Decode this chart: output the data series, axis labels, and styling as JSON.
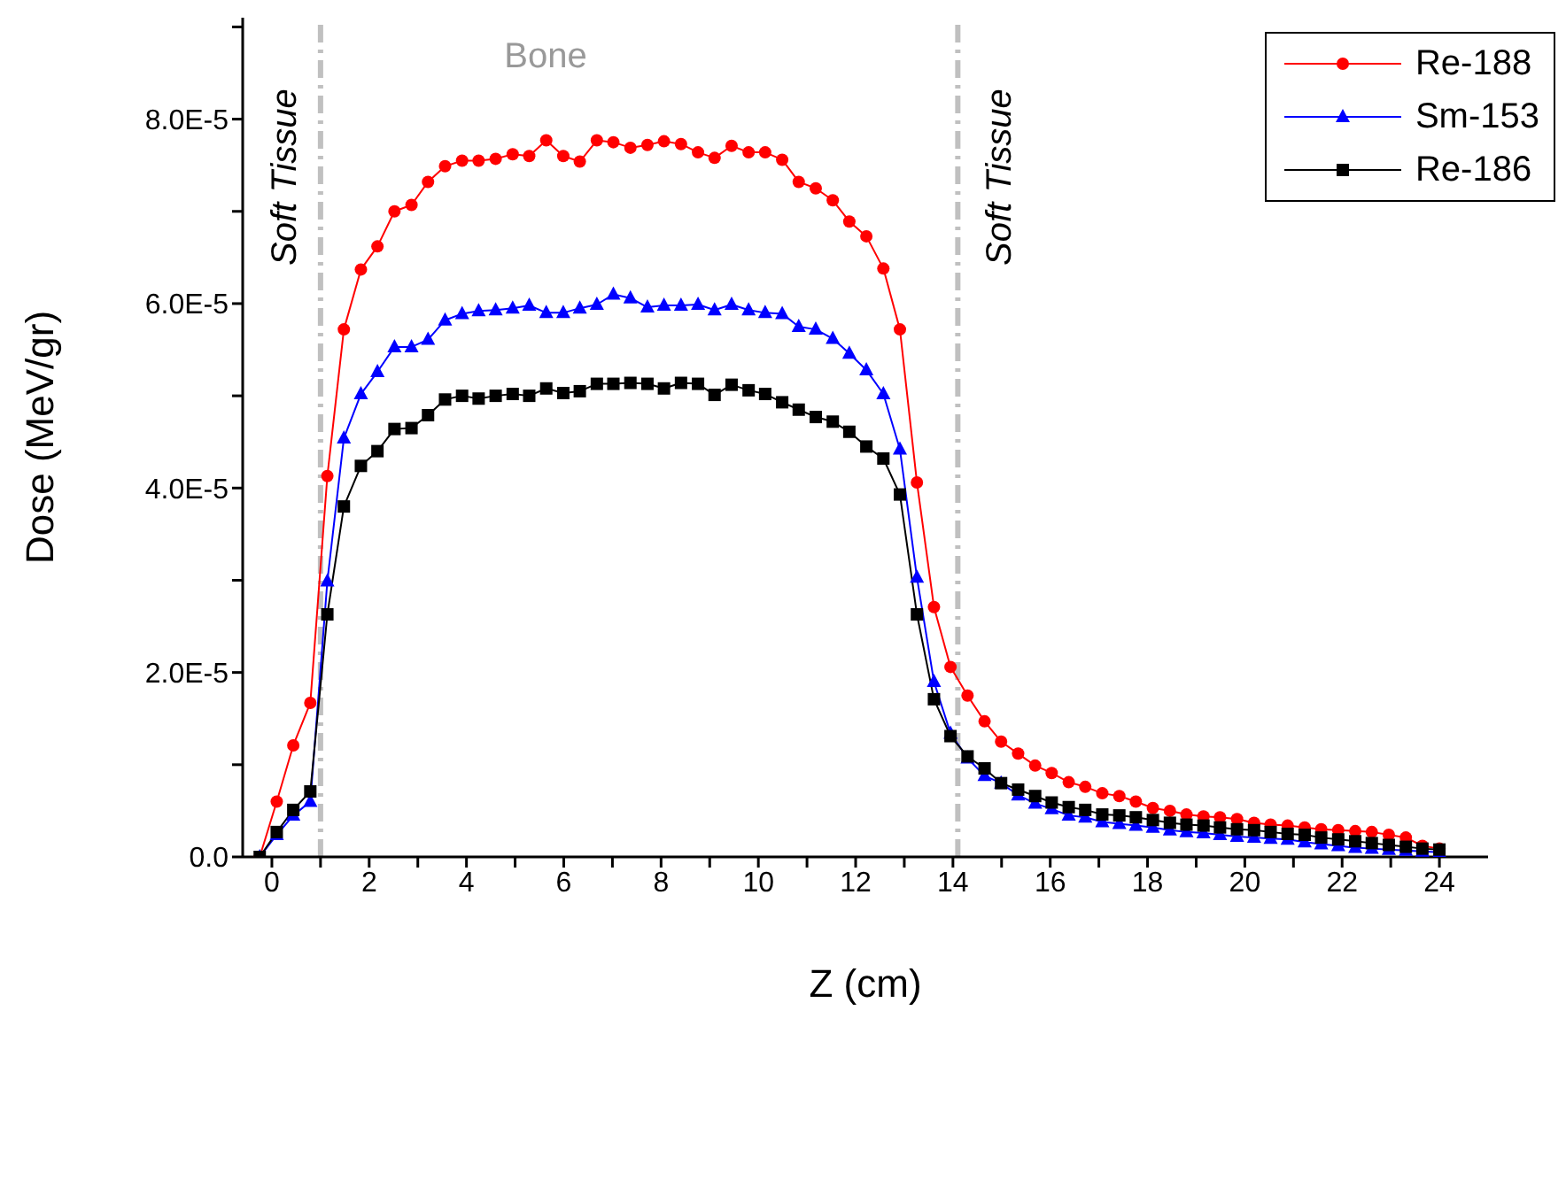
{
  "chart_data": {
    "type": "line",
    "xlabel": "Z (cm)",
    "ylabel": "Dose (MeV/gr)",
    "x": [
      -0.25,
      0.1,
      0.44,
      0.79,
      1.14,
      1.48,
      1.83,
      2.17,
      2.52,
      2.87,
      3.21,
      3.56,
      3.91,
      4.25,
      4.6,
      4.95,
      5.29,
      5.64,
      5.99,
      6.33,
      6.68,
      7.02,
      7.37,
      7.72,
      8.06,
      8.41,
      8.76,
      9.1,
      9.45,
      9.8,
      10.14,
      10.49,
      10.83,
      11.18,
      11.53,
      11.87,
      12.22,
      12.57,
      12.91,
      13.26,
      13.61,
      13.95,
      14.3,
      14.65,
      14.99,
      15.34,
      15.69,
      16.03,
      16.38,
      16.72,
      17.07,
      17.42,
      17.76,
      18.11,
      18.46,
      18.8,
      19.15,
      19.49,
      19.84,
      20.19,
      20.53,
      20.88,
      21.23,
      21.57,
      21.92,
      22.27,
      22.61,
      22.96,
      23.31,
      23.65,
      24.0
    ],
    "series": [
      {
        "name": "Re-188",
        "color": "#ff0000",
        "marker": "circle",
        "values": [
          0,
          6e-06,
          1.21e-05,
          1.67e-05,
          4.13e-05,
          5.72e-05,
          6.37e-05,
          6.62e-05,
          7e-05,
          7.07e-05,
          7.32e-05,
          7.49e-05,
          7.55e-05,
          7.55e-05,
          7.57e-05,
          7.62e-05,
          7.6e-05,
          7.77e-05,
          7.6e-05,
          7.54e-05,
          7.77e-05,
          7.75e-05,
          7.69e-05,
          7.72e-05,
          7.76e-05,
          7.73e-05,
          7.64e-05,
          7.58e-05,
          7.71e-05,
          7.64e-05,
          7.64e-05,
          7.56e-05,
          7.32e-05,
          7.25e-05,
          7.12e-05,
          6.89e-05,
          6.73e-05,
          6.38e-05,
          5.72e-05,
          4.06e-05,
          2.71e-05,
          2.06e-05,
          1.75e-05,
          1.47e-05,
          1.25e-05,
          1.12e-05,
          9.9e-06,
          9.1e-06,
          8.1e-06,
          7.6e-06,
          6.9e-06,
          6.6e-06,
          6e-06,
          5.3e-06,
          5e-06,
          4.6e-06,
          4.4e-06,
          4.3e-06,
          4.1e-06,
          3.7e-06,
          3.5e-06,
          3.4e-06,
          3.2e-06,
          3e-06,
          2.9e-06,
          2.8e-06,
          2.7e-06,
          2.4e-06,
          2.1e-06,
          1.2e-06,
          9e-07
        ]
      },
      {
        "name": "Sm-153",
        "color": "#0000ff",
        "marker": "triangle",
        "values": [
          0,
          2.4e-06,
          4.5e-06,
          6e-06,
          2.99e-05,
          4.54e-05,
          5.02e-05,
          5.26e-05,
          5.53e-05,
          5.53e-05,
          5.61e-05,
          5.82e-05,
          5.89e-05,
          5.92e-05,
          5.93e-05,
          5.95e-05,
          5.98e-05,
          5.9e-05,
          5.9e-05,
          5.95e-05,
          5.99e-05,
          6.1e-05,
          6.06e-05,
          5.96e-05,
          5.98e-05,
          5.98e-05,
          5.99e-05,
          5.93e-05,
          5.99e-05,
          5.93e-05,
          5.9e-05,
          5.89e-05,
          5.75e-05,
          5.72e-05,
          5.62e-05,
          5.46e-05,
          5.28e-05,
          5.02e-05,
          4.42e-05,
          3.03e-05,
          1.9e-05,
          1.34e-05,
          1.07e-05,
          8.8e-06,
          8e-06,
          6.7e-06,
          5.8e-06,
          5.2e-06,
          4.5e-06,
          4.3e-06,
          3.8e-06,
          3.6e-06,
          3.4e-06,
          3.2e-06,
          2.9e-06,
          2.7e-06,
          2.6e-06,
          2.4e-06,
          2.2e-06,
          2.1e-06,
          2e-06,
          1.9e-06,
          1.6e-06,
          1.4e-06,
          1.2e-06,
          1e-06,
          9e-07,
          8e-07,
          7e-07,
          6e-07,
          5e-07
        ]
      },
      {
        "name": "Re-186",
        "color": "#000000",
        "marker": "square",
        "values": [
          0,
          2.7e-06,
          5.1e-06,
          7.1e-06,
          2.63e-05,
          3.8e-05,
          4.24e-05,
          4.4e-05,
          4.64e-05,
          4.65e-05,
          4.79e-05,
          4.96e-05,
          5e-05,
          4.97e-05,
          5e-05,
          5.02e-05,
          5e-05,
          5.08e-05,
          5.03e-05,
          5.05e-05,
          5.13e-05,
          5.13e-05,
          5.14e-05,
          5.13e-05,
          5.08e-05,
          5.14e-05,
          5.13e-05,
          5.01e-05,
          5.12e-05,
          5.06e-05,
          5.02e-05,
          4.93e-05,
          4.85e-05,
          4.77e-05,
          4.72e-05,
          4.61e-05,
          4.45e-05,
          4.32e-05,
          3.93e-05,
          2.63e-05,
          1.71e-05,
          1.31e-05,
          1.09e-05,
          9.6e-06,
          8e-06,
          7.3e-06,
          6.6e-06,
          5.9e-06,
          5.4e-06,
          5.1e-06,
          4.6e-06,
          4.5e-06,
          4.3e-06,
          4e-06,
          3.7e-06,
          3.5e-06,
          3.4e-06,
          3.2e-06,
          3e-06,
          2.9e-06,
          2.7e-06,
          2.5e-06,
          2.4e-06,
          2.1e-06,
          1.9e-06,
          1.7e-06,
          1.5e-06,
          1.3e-06,
          1.1e-06,
          9e-07,
          8e-07
        ]
      }
    ],
    "xlim": [
      -0.6,
      25
    ],
    "xticks": [
      0,
      {
        "value": 1,
        "label": null
      },
      2,
      {
        "value": 3,
        "label": null
      },
      4,
      {
        "value": 5,
        "label": null
      },
      6,
      {
        "value": 7,
        "label": null
      },
      8,
      {
        "value": 9,
        "label": null
      },
      10,
      {
        "value": 11,
        "label": null
      },
      12,
      {
        "value": 13,
        "label": null
      },
      14,
      {
        "value": 15,
        "label": null
      },
      16,
      {
        "value": 17,
        "label": null
      },
      18,
      {
        "value": 19,
        "label": null
      },
      20,
      {
        "value": 21,
        "label": null
      },
      22,
      {
        "value": 23,
        "label": null
      },
      24
    ],
    "ylim": [
      0,
      9.1e-05
    ],
    "yticks": [
      {
        "value": 0,
        "label": "0.0"
      },
      {
        "value": 1e-05,
        "label": null
      },
      {
        "value": 2e-05,
        "label": "2.0E-5"
      },
      {
        "value": 3e-05,
        "label": null
      },
      {
        "value": 4e-05,
        "label": "4.0E-5"
      },
      {
        "value": 5e-05,
        "label": null
      },
      {
        "value": 6e-05,
        "label": "6.0E-5"
      },
      {
        "value": 7e-05,
        "label": null
      },
      {
        "value": 8e-05,
        "label": "8.0E-5"
      },
      {
        "value": 9e-05,
        "label": null
      }
    ],
    "ref_lines": [
      {
        "axis": "x",
        "value": 1,
        "label": "Soft Tissue",
        "color": "#c0c0c0",
        "line_style": "dashed"
      },
      {
        "axis": "x",
        "value": 14.1,
        "label": "Soft Tissue",
        "color": "#c0c0c0",
        "line_style": "dashed"
      }
    ],
    "annotations": [
      "Bone"
    ],
    "legend": "top right",
    "line_style": "solid"
  }
}
